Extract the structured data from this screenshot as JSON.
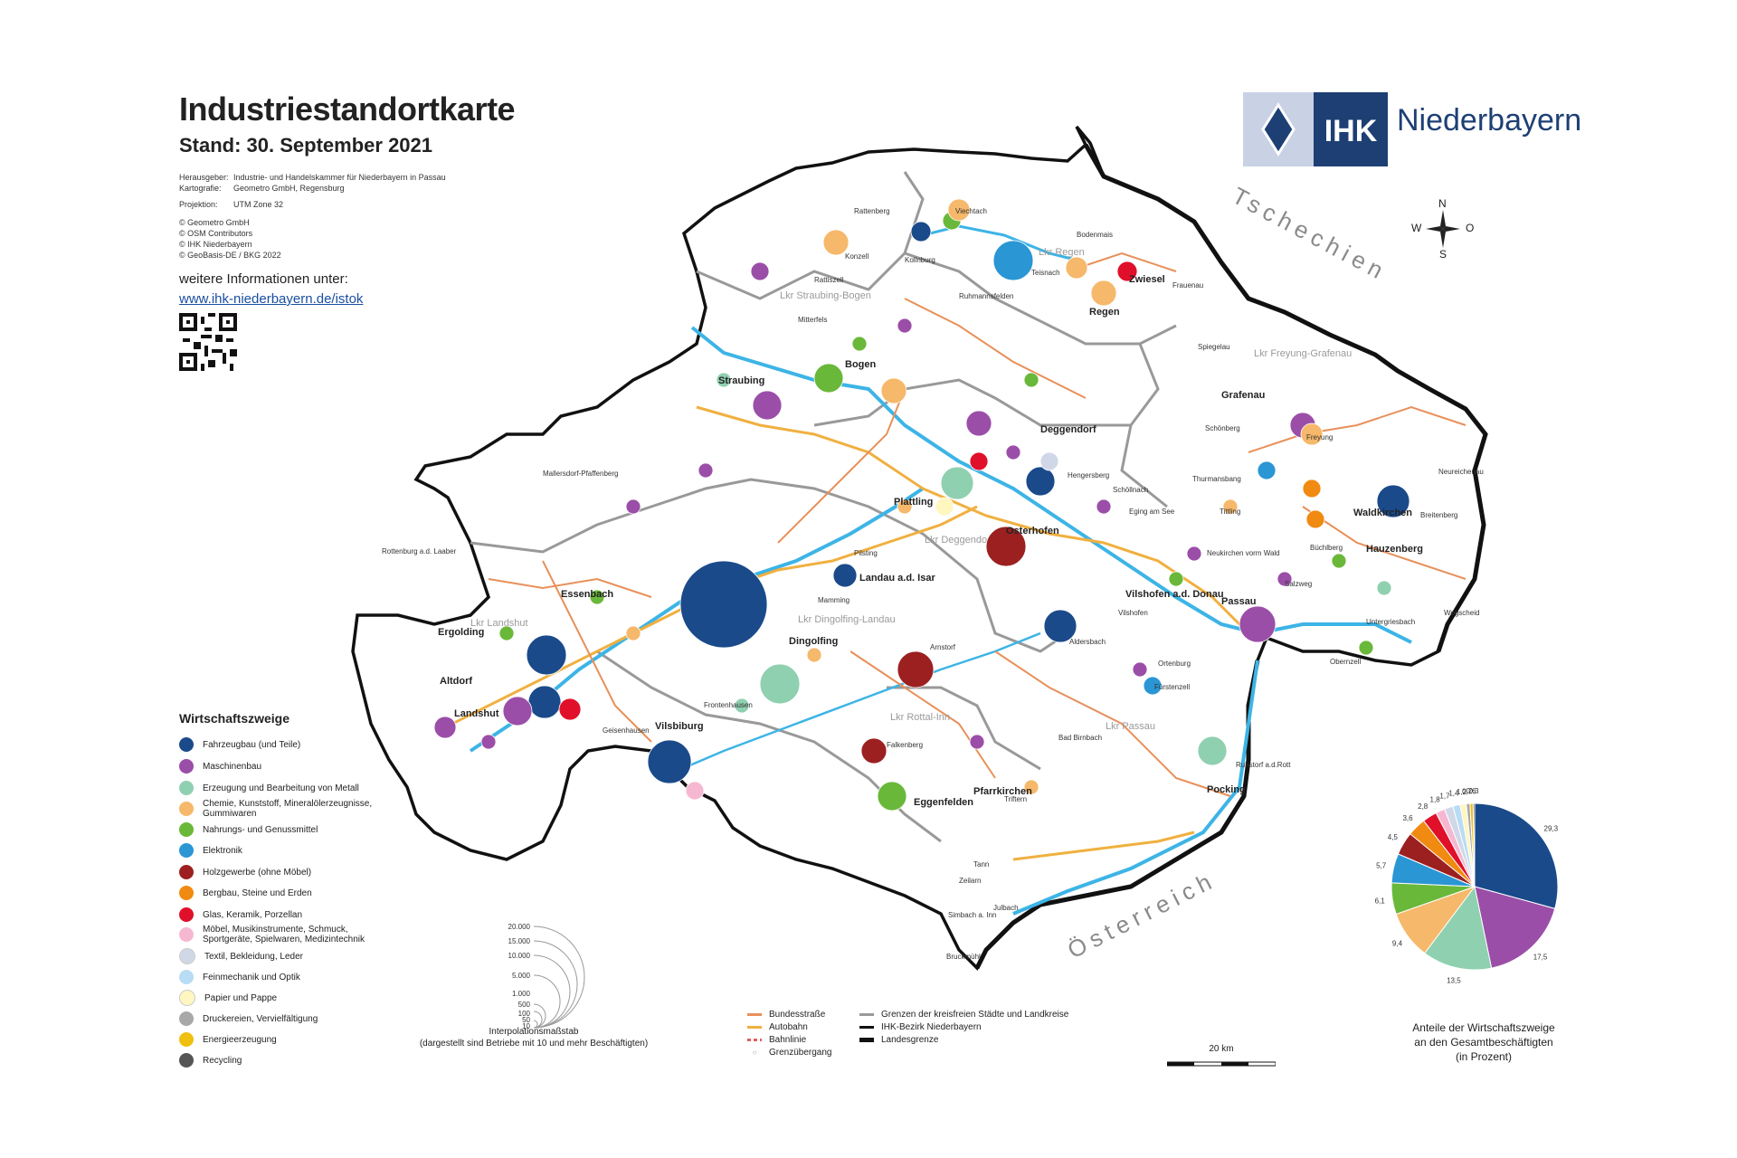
{
  "header": {
    "title": "Industriestandortkarte",
    "subtitle": "Stand: 30. September 2021",
    "meta": [
      {
        "key": "Herausgeber:",
        "value": "Industrie- und Handelskammer für Niederbayern in Passau"
      },
      {
        "key": "Kartografie:",
        "value": "Geometro GmbH, Regensburg"
      },
      {
        "key": "Projektion:",
        "value": "UTM Zone 32"
      }
    ],
    "credits": [
      "© Geometro GmbH",
      "© OSM Contributors",
      "© IHK Niederbayern",
      "© GeoBasis-DE / BKG 2022"
    ],
    "more_info_label": "weitere Informationen unter:",
    "more_info_link": "www.ihk-niederbayern.de/istok"
  },
  "logo": {
    "text": "Niederbayern",
    "badge": "IHK"
  },
  "compass": {
    "n": "N",
    "s": "S",
    "w": "W",
    "o": "O"
  },
  "countries": {
    "north": "Tschechien",
    "south": "Österreich"
  },
  "legend": {
    "title": "Wirtschaftszweige",
    "items": [
      {
        "label": "Fahrzeugbau (und Teile)",
        "color": "#1a4a8a"
      },
      {
        "label": "Maschinenbau",
        "color": "#9b4ea8"
      },
      {
        "label": "Erzeugung und Bearbeitung von Metall",
        "color": "#8fd0b0"
      },
      {
        "label": "Chemie, Kunststoff, Mineralölerzeugnisse, Gummiwaren",
        "color": "#f6b86a"
      },
      {
        "label": "Nahrungs- und Genussmittel",
        "color": "#6ab83a"
      },
      {
        "label": "Elektronik",
        "color": "#2a96d4"
      },
      {
        "label": "Holzgewerbe (ohne Möbel)",
        "color": "#9c2020"
      },
      {
        "label": "Bergbau, Steine und Erden",
        "color": "#f08a10"
      },
      {
        "label": "Glas, Keramik, Porzellan",
        "color": "#e0102a"
      },
      {
        "label": "Möbel, Musikinstrumente, Schmuck, Sportgeräte, Spielwaren, Medizintechnik",
        "color": "#f6b8d0"
      },
      {
        "label": "Textil, Bekleidung, Leder",
        "color": "#d0d8e8"
      },
      {
        "label": "Feinmechanik und Optik",
        "color": "#b8dcf4"
      },
      {
        "label": "Papier und Pappe",
        "color": "#fff6c0"
      },
      {
        "label": "Druckereien, Vervielfältigung",
        "color": "#a8a8a8"
      },
      {
        "label": "Energieerzeugung",
        "color": "#f0c010"
      },
      {
        "label": "Recycling",
        "color": "#555555"
      }
    ]
  },
  "scale_circles": {
    "values": [
      "20.000",
      "15.000",
      "10.000",
      "5.000",
      "1.000",
      "500",
      "100",
      "50",
      "10"
    ],
    "caption_line1": "Interpolationsmaßstab",
    "caption_line2": "(dargestellt sind Betriebe mit 10 und mehr Beschäftigten)"
  },
  "line_legend": {
    "col1": [
      {
        "label": "Bundesstraße",
        "color": "#e8905a"
      },
      {
        "label": "Autobahn",
        "color": "#f0b040"
      },
      {
        "label": "Bahnlinie",
        "color": "#e06060"
      },
      {
        "label": "Grenzübergang",
        "color": "#999999"
      }
    ],
    "col2": [
      {
        "label": "Grenzen der kreisfreien Städte und Landkreise",
        "color": "#999999"
      },
      {
        "label": "IHK-Bezirk Niederbayern",
        "color": "#111111"
      },
      {
        "label": "Landesgrenze",
        "color": "#111111"
      }
    ]
  },
  "scalebar": {
    "label": "20 km"
  },
  "pie": {
    "caption_line1": "Anteile der Wirtschaftszweige",
    "caption_line2": "an den Gesamtbeschäftigten",
    "caption_line3": "(in Prozent)",
    "values": [
      29.3,
      17.5,
      13.5,
      9.4,
      6.1,
      5.7,
      4.5,
      3.6,
      2.8,
      1.8,
      1.7,
      1.4,
      1.2,
      0.7,
      0.6,
      0.3
    ],
    "labels": [
      "29,3",
      "17,5",
      "13,5",
      "9,4",
      "6,1",
      "5,7",
      "4,5",
      "3,6",
      "2,8",
      "1,8",
      "1,7",
      "1,4",
      "1,2",
      "0,7",
      "0,6",
      "0,3"
    ],
    "colors": [
      "#1a4a8a",
      "#9b4ea8",
      "#8fd0b0",
      "#f6b86a",
      "#6ab83a",
      "#2a96d4",
      "#9c2020",
      "#f08a10",
      "#e0102a",
      "#f6b8d0",
      "#d0d8e8",
      "#b8dcf4",
      "#fff6c0",
      "#a8a8a8",
      "#f0c010",
      "#555555"
    ]
  },
  "districts": [
    "Lkr Straubing-Bogen",
    "Lkr Regen",
    "Lkr Freyung-Grafenau",
    "Lkr Deggendorf",
    "Lkr Dingolfing-Landau",
    "Lkr Landshut",
    "Lkr Rottal-Inn",
    "Lkr Passau"
  ],
  "cities": [
    "Straubing",
    "Bogen",
    "Deggendorf",
    "Regen",
    "Landshut",
    "Passau",
    "Dingolfing",
    "Landau a.d. Isar",
    "Vilsbiburg",
    "Eggenfelden",
    "Pfarrkirchen",
    "Osterhofen",
    "Plattling",
    "Vilshofen a.d. Donau",
    "Zwiesel",
    "Grafenau",
    "Hauzenberg",
    "Waldkirchen",
    "Pocking",
    "Ergolding",
    "Altdorf",
    "Essenbach",
    "Freyung",
    "Viechtach",
    "Kollnburg",
    "Mallersdorf-Pfaffenberg",
    "Rottenburg a.d. Laaber",
    "Simbach a. Inn",
    "Arnstorf",
    "Aldersbach",
    "Fürstenzell",
    "Tittling",
    "Hengersberg",
    "Neukirchen vorm Wald",
    "Salzweg",
    "Ruhstorf a.d.Rott",
    "Bad Birnbach",
    "Frontenhausen",
    "Geisenhausen",
    "Falkenberg",
    "Mamming",
    "Pilsting",
    "Rattenberg",
    "Konzell",
    "Mitterfels",
    "Rattiszell",
    "Bodenmais",
    "Teisnach",
    "Ruhmannsfelden",
    "Schöllnach",
    "Eging am See",
    "Thurmansbang",
    "Schönberg",
    "Spiegelau",
    "Frauenau",
    "Neureichenau",
    "Breitenberg",
    "Wegscheid",
    "Untergriesbach",
    "Obernzell",
    "Büchlberg",
    "Ortenburg",
    "Vilshofen",
    "Triftern",
    "Tann",
    "Zeilarn",
    "Julbach",
    "Bruckmühl"
  ]
}
